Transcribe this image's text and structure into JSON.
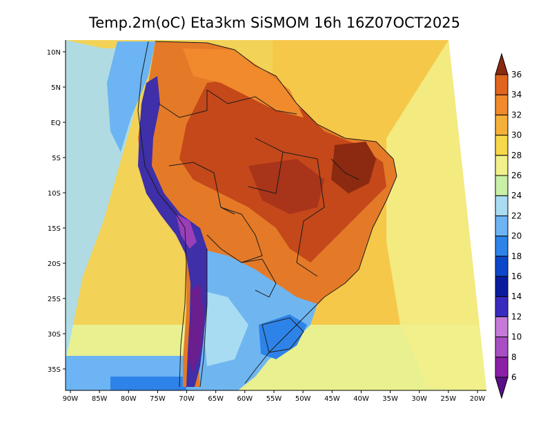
{
  "title": "Temp.2m(oC) Eta3km SiSMOM 16h 16Z07OCT2025",
  "axes": {
    "lon_labels": [
      "90W",
      "85W",
      "80W",
      "75W",
      "70W",
      "65W",
      "60W",
      "55W",
      "50W",
      "45W",
      "40W",
      "35W",
      "30W",
      "25W",
      "20W"
    ],
    "lat_labels": [
      "10N",
      "5N",
      "EQ",
      "5S",
      "10S",
      "15S",
      "20S",
      "25S",
      "30S",
      "35S"
    ]
  },
  "colorbar": {
    "levels": [
      "6",
      "8",
      "10",
      "12",
      "14",
      "16",
      "18",
      "20",
      "22",
      "24",
      "26",
      "28",
      "30",
      "32",
      "34",
      "36"
    ],
    "colors": [
      "#5a0f86",
      "#8b1fa6",
      "#a94fc4",
      "#c67ad8",
      "#3a2bbf",
      "#0a1c9e",
      "#0d47c9",
      "#2e83e8",
      "#6cb4f3",
      "#a8dcf2",
      "#c8f0a6",
      "#f2f08a",
      "#f7d84a",
      "#f5b03a",
      "#f08a2c",
      "#e0651f",
      "#c4481a",
      "#8b2a10"
    ]
  },
  "regions": [
    {
      "name": "ocean-pacific",
      "color": "#f2d257"
    },
    {
      "name": "ocean-atlantic",
      "color": "#f5c84a"
    },
    {
      "name": "north-warm",
      "color": "#e47a28"
    },
    {
      "name": "amazon-core",
      "color": "#c5501d"
    },
    {
      "name": "south-cool",
      "color": "#6fb6f1"
    },
    {
      "name": "andes-cold",
      "color": "#3f2fa8"
    }
  ]
}
